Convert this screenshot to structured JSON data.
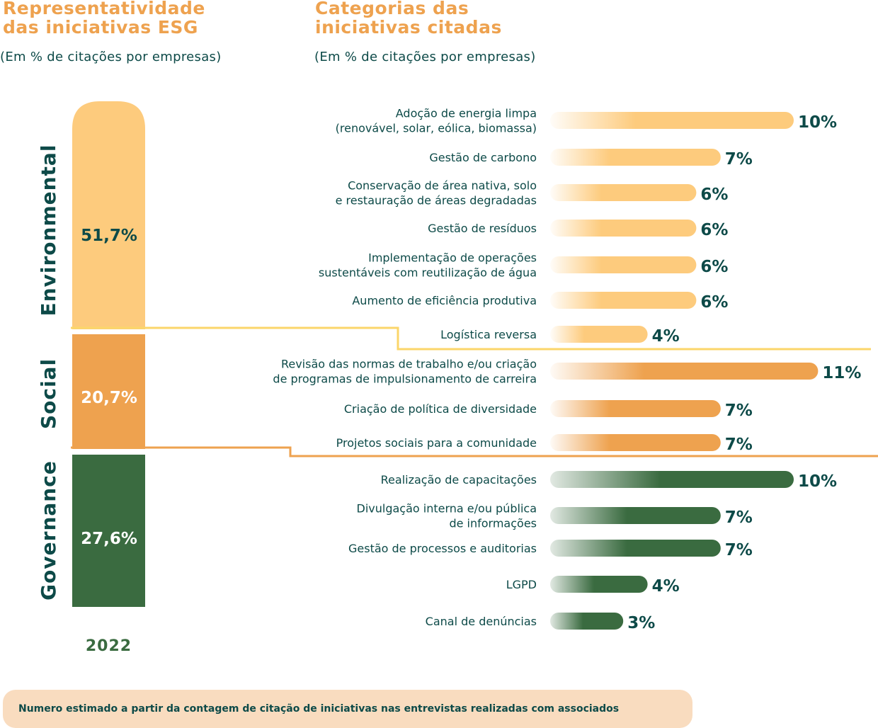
{
  "left_title": "Representatividade\ndas iniciativas ESG",
  "left_subtitle": "(Em % de citações por empresas)",
  "right_title": "Categorias das\niniciativas citadas",
  "right_subtitle": "(Em % de citações por empresas)",
  "year": "2022",
  "footnote": "Numero estimado a partir da contagem de citação de iniciativas nas entrevistas realizadas com associados",
  "colors": {
    "environmental": "#fdcb7d",
    "social": "#eea24f",
    "governance": "#3a6b40",
    "text": "#0d4a48",
    "title": "#eea24f"
  },
  "chart_data": [
    {
      "type": "bar",
      "title": "Representatividade das iniciativas ESG",
      "subtitle": "(Em % de citações por empresas)",
      "xlabel": "2022",
      "categories": [
        "Environmental",
        "Social",
        "Governance"
      ],
      "values": [
        51.7,
        20.7,
        27.6
      ],
      "value_labels": [
        "51,7%",
        "20,7%",
        "27,6%"
      ],
      "stacked": true
    },
    {
      "type": "bar",
      "orientation": "horizontal",
      "title": "Categorias das iniciativas citadas",
      "subtitle": "(Em % de citações por empresas)",
      "groups": [
        {
          "name": "Environmental",
          "color": "#fdcb7d",
          "items": [
            {
              "label": "Adoção de energia limpa\n(renovável, solar, eólica, biomassa)",
              "value": 10,
              "value_label": "10%"
            },
            {
              "label": "Gestão de carbono",
              "value": 7,
              "value_label": "7%"
            },
            {
              "label": "Conservação de área nativa, solo\ne restauração de áreas degradadas",
              "value": 6,
              "value_label": "6%"
            },
            {
              "label": "Gestão de resíduos",
              "value": 6,
              "value_label": "6%"
            },
            {
              "label": "Implementação de operações\nsustentáveis com reutilização de água",
              "value": 6,
              "value_label": "6%"
            },
            {
              "label": "Aumento de eficiência produtiva",
              "value": 6,
              "value_label": "6%"
            },
            {
              "label": "Logística reversa",
              "value": 4,
              "value_label": "4%"
            }
          ]
        },
        {
          "name": "Social",
          "color": "#eea24f",
          "items": [
            {
              "label": "Revisão das normas de trabalho e/ou criação\nde programas de impulsionamento de carreira",
              "value": 11,
              "value_label": "11%"
            },
            {
              "label": "Criação de política de diversidade",
              "value": 7,
              "value_label": "7%"
            },
            {
              "label": "Projetos sociais para a comunidade",
              "value": 7,
              "value_label": "7%"
            }
          ]
        },
        {
          "name": "Governance",
          "color": "#3a6b40",
          "items": [
            {
              "label": "Realização de capacitações",
              "value": 10,
              "value_label": "10%"
            },
            {
              "label": "Divulgação interna e/ou pública\nde informações",
              "value": 7,
              "value_label": "7%"
            },
            {
              "label": "Gestão de processos e auditorias",
              "value": 7,
              "value_label": "7%"
            },
            {
              "label": "LGPD",
              "value": 4,
              "value_label": "4%"
            },
            {
              "label": "Canal de denúncias",
              "value": 3,
              "value_label": "3%"
            }
          ]
        }
      ]
    }
  ]
}
